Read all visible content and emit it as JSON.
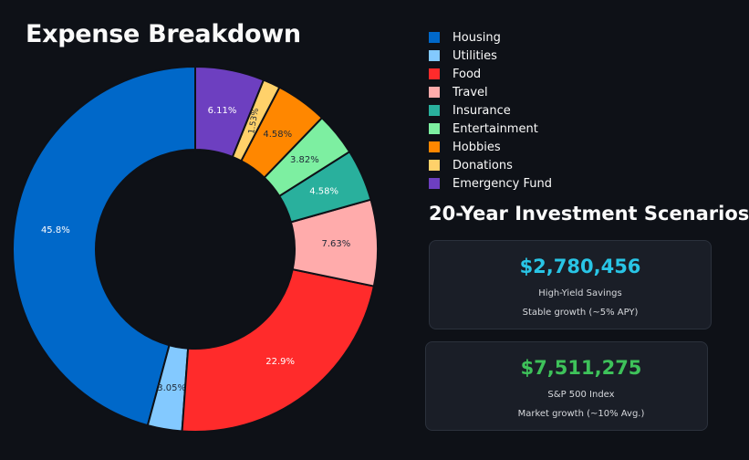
{
  "title": "Expense Breakdown",
  "chart_data": {
    "type": "pie",
    "title": "Expense Breakdown",
    "hole": "donut",
    "categories": [
      "Housing",
      "Utilities",
      "Food",
      "Travel",
      "Insurance",
      "Entertainment",
      "Hobbies",
      "Donations",
      "Emergency Fund"
    ],
    "values": [
      45.8,
      3.05,
      22.9,
      7.63,
      4.58,
      3.82,
      4.58,
      1.53,
      6.11
    ],
    "labels": [
      "45.8%",
      "3.05%",
      "22.9%",
      "7.63%",
      "4.58%",
      "3.82%",
      "4.58%",
      "1.53%",
      "6.11%"
    ],
    "colors": [
      "#0068c9",
      "#83c9ff",
      "#ff2b2b",
      "#ffabab",
      "#29b09d",
      "#7defa1",
      "#ff8700",
      "#ffd16a",
      "#6d3fc0"
    ],
    "label_colors": [
      "#ffffff",
      "#1f2937",
      "#ffffff",
      "#1f2937",
      "#ffffff",
      "#1f2937",
      "#1f2937",
      "#1f2937",
      "#ffffff"
    ],
    "direction": "counterclockwise",
    "legend_position": "right"
  },
  "investments": {
    "title": "20-Year Investment Scenarios",
    "cards": [
      {
        "amount": "$2,780,456",
        "name": "High-Yield Savings",
        "desc": "Stable growth (~5% APY)",
        "color": "#29c5e6"
      },
      {
        "amount": "$7,511,275",
        "name": "S&P 500 Index",
        "desc": "Market growth (~10% Avg.)",
        "color": "#3ec25a"
      }
    ]
  }
}
